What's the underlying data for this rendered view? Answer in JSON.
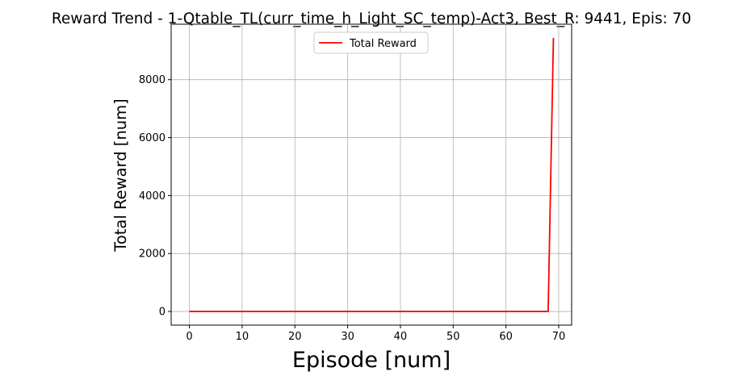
{
  "chart_data": {
    "type": "line",
    "title": "Reward Trend - 1-Qtable_TL(curr_time_h_Light_SC_temp)-Act3, Best_R: 9441, Epis: 70",
    "xlabel": "Episode [num]",
    "ylabel": "Total Reward [num]",
    "xlim": [
      -3.45,
      72.45
    ],
    "ylim": [
      -472.05,
      9913.05
    ],
    "xticks": [
      0,
      10,
      20,
      30,
      40,
      50,
      60,
      70
    ],
    "yticks": [
      0,
      2000,
      4000,
      6000,
      8000
    ],
    "grid": true,
    "legend_position": "top-center",
    "series": [
      {
        "name": "Total Reward",
        "color": "#ff0000",
        "x": [
          0,
          68,
          69
        ],
        "y": [
          0,
          0,
          9441
        ]
      }
    ]
  }
}
